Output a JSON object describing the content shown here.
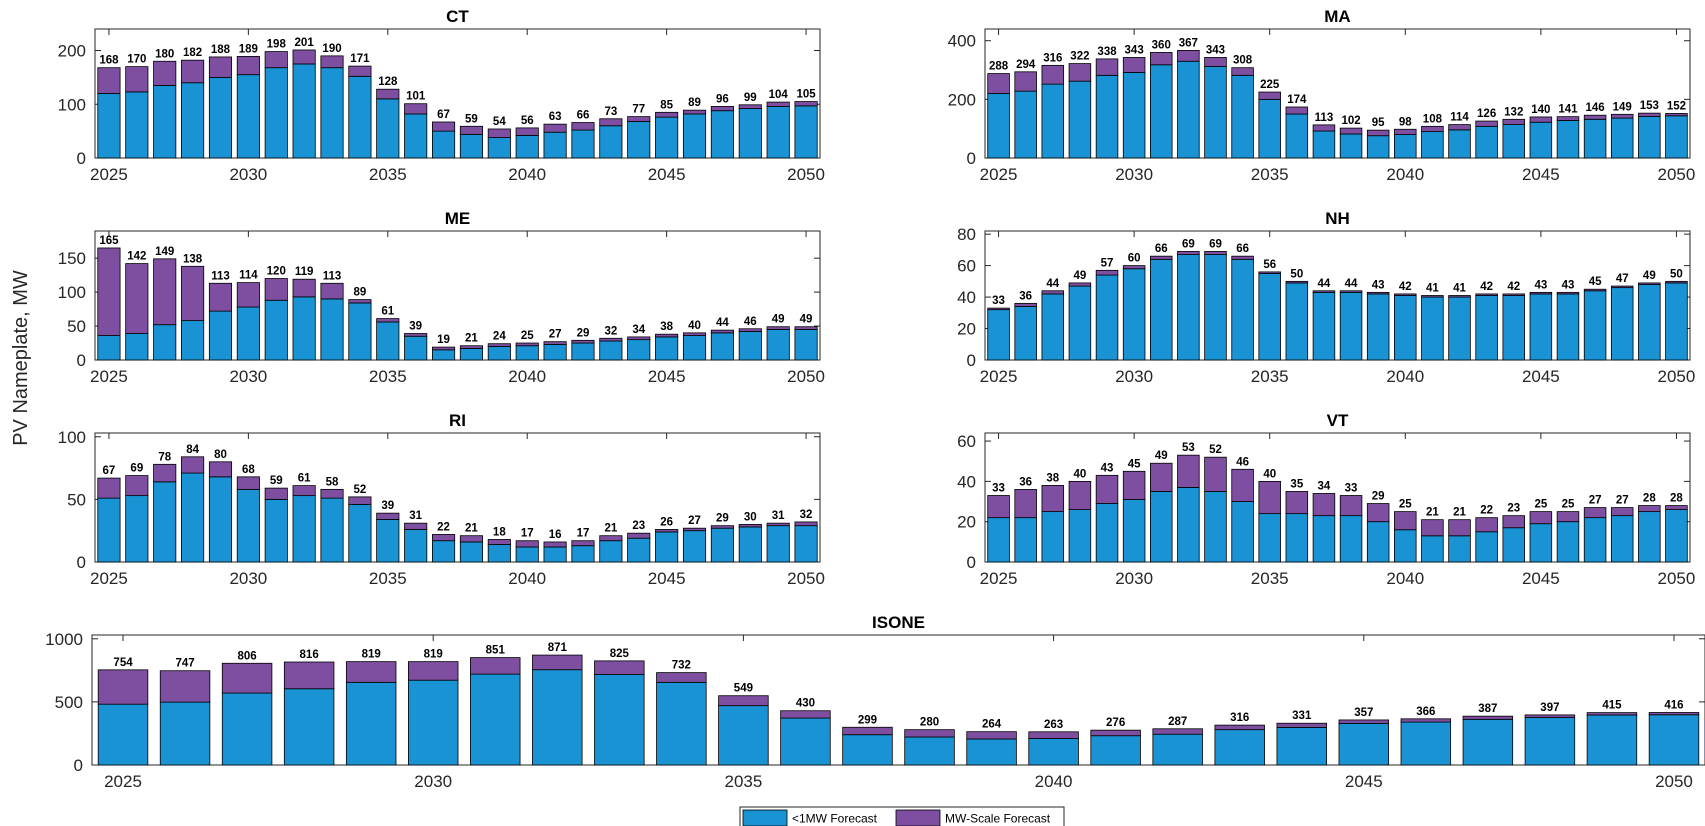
{
  "figure": {
    "ylabel": "PV Nameplate, MW",
    "legend": [
      "<1MW Forecast",
      "MW-Scale Forecast"
    ],
    "colors": {
      "small": "#1993d3",
      "mw": "#7e4fa0"
    }
  },
  "chart_data": [
    {
      "type": "bar",
      "stacked": true,
      "title": "CT",
      "x": [
        2025,
        2026,
        2027,
        2028,
        2029,
        2030,
        2031,
        2032,
        2033,
        2034,
        2035,
        2036,
        2037,
        2038,
        2039,
        2040,
        2041,
        2042,
        2043,
        2044,
        2045,
        2046,
        2047,
        2048,
        2049,
        2050
      ],
      "xticks": [
        2025,
        2030,
        2035,
        2040,
        2045,
        2050
      ],
      "ylim": [
        0,
        240
      ],
      "yticks": [
        0,
        100,
        200
      ],
      "series": [
        {
          "name": "<1MW Forecast",
          "values": [
            120,
            123,
            135,
            140,
            150,
            155,
            168,
            175,
            168,
            152,
            110,
            82,
            50,
            44,
            38,
            42,
            48,
            52,
            60,
            68,
            76,
            82,
            88,
            92,
            96,
            97
          ]
        },
        {
          "name": "MW-Scale Forecast",
          "values": [
            48,
            47,
            45,
            42,
            38,
            34,
            30,
            26,
            22,
            19,
            18,
            19,
            17,
            15,
            16,
            14,
            15,
            14,
            13,
            9,
            9,
            7,
            8,
            7,
            8,
            8
          ]
        }
      ],
      "totals": [
        168,
        170,
        180,
        182,
        188,
        189,
        198,
        201,
        190,
        171,
        128,
        101,
        67,
        59,
        54,
        56,
        63,
        66,
        73,
        77,
        85,
        89,
        96,
        99,
        104,
        105
      ]
    },
    {
      "type": "bar",
      "stacked": true,
      "title": "MA",
      "x": [
        2025,
        2026,
        2027,
        2028,
        2029,
        2030,
        2031,
        2032,
        2033,
        2034,
        2035,
        2036,
        2037,
        2038,
        2039,
        2040,
        2041,
        2042,
        2043,
        2044,
        2045,
        2046,
        2047,
        2048,
        2049,
        2050
      ],
      "xticks": [
        2025,
        2030,
        2035,
        2040,
        2045,
        2050
      ],
      "ylim": [
        0,
        440
      ],
      "yticks": [
        0,
        200,
        400
      ],
      "series": [
        {
          "name": "<1MW Forecast",
          "values": [
            220,
            228,
            252,
            262,
            282,
            292,
            318,
            330,
            312,
            282,
            200,
            150,
            92,
            82,
            76,
            80,
            90,
            96,
            108,
            114,
            122,
            128,
            132,
            136,
            142,
            144
          ]
        },
        {
          "name": "MW-Scale Forecast",
          "values": [
            68,
            66,
            64,
            60,
            56,
            51,
            42,
            37,
            31,
            26,
            25,
            24,
            21,
            20,
            19,
            18,
            18,
            18,
            18,
            18,
            18,
            13,
            14,
            13,
            11,
            8
          ]
        }
      ],
      "totals": [
        288,
        294,
        316,
        322,
        338,
        343,
        360,
        367,
        343,
        308,
        225,
        174,
        113,
        102,
        95,
        98,
        108,
        114,
        126,
        132,
        140,
        141,
        146,
        149,
        153,
        152
      ]
    },
    {
      "type": "bar",
      "stacked": true,
      "title": "ME",
      "x": [
        2025,
        2026,
        2027,
        2028,
        2029,
        2030,
        2031,
        2032,
        2033,
        2034,
        2035,
        2036,
        2037,
        2038,
        2039,
        2040,
        2041,
        2042,
        2043,
        2044,
        2045,
        2046,
        2047,
        2048,
        2049,
        2050
      ],
      "xticks": [
        2025,
        2030,
        2035,
        2040,
        2045,
        2050
      ],
      "ylim": [
        0,
        190
      ],
      "yticks": [
        0,
        50,
        100,
        150
      ],
      "series": [
        {
          "name": "<1MW Forecast",
          "values": [
            36,
            39,
            52,
            58,
            72,
            78,
            88,
            93,
            90,
            84,
            56,
            35,
            15,
            17,
            20,
            21,
            23,
            25,
            28,
            30,
            34,
            36,
            40,
            42,
            45,
            45
          ]
        },
        {
          "name": "MW-Scale Forecast",
          "values": [
            129,
            103,
            97,
            80,
            41,
            36,
            32,
            26,
            23,
            5,
            5,
            4,
            4,
            4,
            4,
            4,
            4,
            4,
            4,
            4,
            4,
            4,
            4,
            4,
            4,
            4
          ]
        }
      ],
      "totals": [
        165,
        142,
        149,
        138,
        113,
        114,
        120,
        119,
        113,
        89,
        61,
        39,
        19,
        21,
        24,
        25,
        27,
        29,
        32,
        34,
        38,
        40,
        44,
        46,
        49,
        49
      ]
    },
    {
      "type": "bar",
      "stacked": true,
      "title": "NH",
      "x": [
        2025,
        2026,
        2027,
        2028,
        2029,
        2030,
        2031,
        2032,
        2033,
        2034,
        2035,
        2036,
        2037,
        2038,
        2039,
        2040,
        2041,
        2042,
        2043,
        2044,
        2045,
        2046,
        2047,
        2048,
        2049,
        2050
      ],
      "xticks": [
        2025,
        2030,
        2035,
        2040,
        2045,
        2050
      ],
      "ylim": [
        0,
        82
      ],
      "yticks": [
        0,
        20,
        40,
        60,
        80
      ],
      "series": [
        {
          "name": "<1MW Forecast",
          "values": [
            32,
            34,
            42,
            47,
            54,
            58,
            64,
            67,
            67,
            64,
            55,
            49,
            43,
            43,
            42,
            41,
            40,
            40,
            41,
            41,
            42,
            42,
            44,
            46,
            48,
            49
          ]
        },
        {
          "name": "MW-Scale Forecast",
          "values": [
            1,
            2,
            2,
            2,
            3,
            2,
            2,
            2,
            2,
            2,
            1,
            1,
            1,
            1,
            1,
            1,
            1,
            1,
            1,
            1,
            1,
            1,
            1,
            1,
            1,
            1
          ]
        }
      ],
      "totals": [
        33,
        36,
        44,
        49,
        57,
        60,
        66,
        69,
        69,
        66,
        56,
        50,
        44,
        44,
        43,
        42,
        41,
        41,
        42,
        42,
        43,
        43,
        45,
        47,
        49,
        50
      ]
    },
    {
      "type": "bar",
      "stacked": true,
      "title": "RI",
      "x": [
        2025,
        2026,
        2027,
        2028,
        2029,
        2030,
        2031,
        2032,
        2033,
        2034,
        2035,
        2036,
        2037,
        2038,
        2039,
        2040,
        2041,
        2042,
        2043,
        2044,
        2045,
        2046,
        2047,
        2048,
        2049,
        2050
      ],
      "xticks": [
        2025,
        2030,
        2035,
        2040,
        2045,
        2050
      ],
      "ylim": [
        0,
        103
      ],
      "yticks": [
        0,
        50,
        100
      ],
      "series": [
        {
          "name": "<1MW Forecast",
          "values": [
            51,
            53,
            64,
            71,
            68,
            58,
            50,
            53,
            51,
            46,
            34,
            26,
            17,
            16,
            14,
            12,
            12,
            13,
            17,
            19,
            24,
            25,
            27,
            28,
            29,
            29
          ]
        },
        {
          "name": "MW-Scale Forecast",
          "values": [
            16,
            16,
            14,
            13,
            12,
            10,
            9,
            8,
            7,
            6,
            5,
            5,
            5,
            5,
            4,
            5,
            4,
            4,
            4,
            4,
            2,
            2,
            2,
            2,
            2,
            3
          ]
        }
      ],
      "totals": [
        67,
        69,
        78,
        84,
        80,
        68,
        59,
        61,
        58,
        52,
        39,
        31,
        22,
        21,
        18,
        17,
        16,
        17,
        21,
        23,
        26,
        27,
        29,
        30,
        31,
        32
      ]
    },
    {
      "type": "bar",
      "stacked": true,
      "title": "VT",
      "x": [
        2025,
        2026,
        2027,
        2028,
        2029,
        2030,
        2031,
        2032,
        2033,
        2034,
        2035,
        2036,
        2037,
        2038,
        2039,
        2040,
        2041,
        2042,
        2043,
        2044,
        2045,
        2046,
        2047,
        2048,
        2049,
        2050
      ],
      "xticks": [
        2025,
        2030,
        2035,
        2040,
        2045,
        2050
      ],
      "ylim": [
        0,
        64
      ],
      "yticks": [
        0,
        20,
        40,
        60
      ],
      "series": [
        {
          "name": "<1MW Forecast",
          "values": [
            22,
            22,
            25,
            26,
            29,
            31,
            35,
            37,
            35,
            30,
            24,
            24,
            23,
            23,
            20,
            16,
            13,
            13,
            15,
            17,
            19,
            20,
            22,
            23,
            25,
            26
          ]
        },
        {
          "name": "MW-Scale Forecast",
          "values": [
            11,
            14,
            13,
            14,
            14,
            14,
            14,
            16,
            17,
            16,
            16,
            11,
            11,
            10,
            9,
            9,
            8,
            8,
            7,
            6,
            6,
            5,
            5,
            4,
            3,
            2
          ]
        }
      ],
      "totals": [
        33,
        36,
        38,
        40,
        43,
        45,
        49,
        53,
        52,
        46,
        40,
        35,
        34,
        33,
        29,
        25,
        21,
        21,
        22,
        23,
        25,
        25,
        27,
        27,
        28,
        28
      ]
    },
    {
      "type": "bar",
      "stacked": true,
      "title": "ISONE",
      "x": [
        2025,
        2026,
        2027,
        2028,
        2029,
        2030,
        2031,
        2032,
        2033,
        2034,
        2035,
        2036,
        2037,
        2038,
        2039,
        2040,
        2041,
        2042,
        2043,
        2044,
        2045,
        2046,
        2047,
        2048,
        2049,
        2050
      ],
      "xticks": [
        2025,
        2030,
        2035,
        2040,
        2045,
        2050
      ],
      "ylim": [
        0,
        1030
      ],
      "yticks": [
        0,
        500,
        1000
      ],
      "series": [
        {
          "name": "<1MW Forecast",
          "values": [
            482,
            498,
            570,
            604,
            655,
            672,
            720,
            755,
            718,
            655,
            470,
            372,
            240,
            222,
            206,
            210,
            232,
            244,
            280,
            298,
            330,
            340,
            362,
            376,
            396,
            398
          ]
        },
        {
          "name": "MW-Scale Forecast",
          "values": [
            272,
            249,
            236,
            212,
            164,
            147,
            131,
            116,
            107,
            77,
            79,
            58,
            59,
            58,
            58,
            53,
            44,
            43,
            36,
            33,
            27,
            26,
            25,
            21,
            19,
            18
          ]
        }
      ],
      "totals": [
        754,
        747,
        806,
        816,
        819,
        819,
        851,
        871,
        825,
        732,
        549,
        430,
        299,
        280,
        264,
        263,
        276,
        287,
        316,
        331,
        357,
        366,
        387,
        397,
        415,
        416
      ]
    }
  ]
}
